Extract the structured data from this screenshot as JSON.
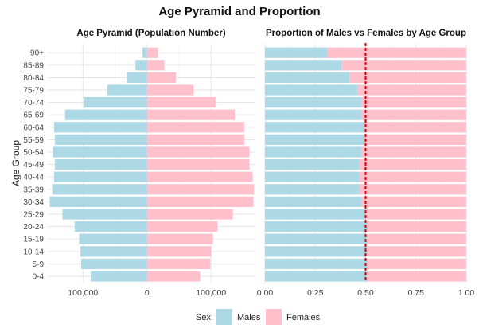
{
  "figure": {
    "title": "Age Pyramid and Proportion"
  },
  "legend": {
    "title": "Sex",
    "items": [
      {
        "label": "Males",
        "color": "#add8e6"
      },
      {
        "label": "Females",
        "color": "#ffc0cb"
      }
    ]
  },
  "chart_data": [
    {
      "type": "bar",
      "orientation": "horizontal",
      "title": "Age Pyramid (Population Number)",
      "ylabel": "Age Group",
      "categories": [
        "0-4",
        "5-9",
        "10-14",
        "15-19",
        "20-24",
        "25-29",
        "30-34",
        "35-39",
        "40-44",
        "45-49",
        "50-54",
        "55-59",
        "60-64",
        "65-69",
        "70-74",
        "75-79",
        "80-84",
        "85-89",
        "90+"
      ],
      "series": [
        {
          "name": "Males",
          "color": "#add8e6",
          "values": [
            -88000,
            -103000,
            -104000,
            -106000,
            -113000,
            -132000,
            -152000,
            -148000,
            -145000,
            -144000,
            -147000,
            -144000,
            -145000,
            -128000,
            -98000,
            -62000,
            -32000,
            -18000,
            -7000
          ]
        },
        {
          "name": "Females",
          "color": "#ffc0cb",
          "values": [
            83000,
            99000,
            100000,
            103000,
            110000,
            134000,
            166000,
            167000,
            165000,
            160000,
            160000,
            152000,
            152000,
            137000,
            107000,
            73000,
            45000,
            27000,
            17000
          ]
        }
      ],
      "xlim": [
        -155000,
        168000
      ],
      "xticks": [
        -100000,
        0,
        100000
      ],
      "xtick_labels": [
        "100,000",
        "0",
        "100,000"
      ],
      "grid": true
    },
    {
      "type": "bar",
      "orientation": "horizontal",
      "stacked": true,
      "title": "Proportion of Males vs Females by Age Group",
      "categories": [
        "0-4",
        "5-9",
        "10-14",
        "15-19",
        "20-24",
        "25-29",
        "30-34",
        "35-39",
        "40-44",
        "45-49",
        "50-54",
        "55-59",
        "60-64",
        "65-69",
        "70-74",
        "75-79",
        "80-84",
        "85-89",
        "90+"
      ],
      "series": [
        {
          "name": "Males",
          "color": "#add8e6",
          "values": [
            0.51,
            0.51,
            0.51,
            0.51,
            0.51,
            0.5,
            0.48,
            0.47,
            0.47,
            0.47,
            0.48,
            0.49,
            0.49,
            0.48,
            0.48,
            0.46,
            0.42,
            0.38,
            0.31
          ]
        },
        {
          "name": "Females",
          "color": "#ffc0cb",
          "values": [
            0.49,
            0.49,
            0.49,
            0.49,
            0.49,
            0.5,
            0.52,
            0.53,
            0.53,
            0.53,
            0.52,
            0.51,
            0.51,
            0.52,
            0.52,
            0.54,
            0.58,
            0.62,
            0.69
          ]
        }
      ],
      "reference_line": {
        "x": 0.5,
        "style": "dotted",
        "color": "#e00000"
      },
      "xlim": [
        0,
        1
      ],
      "xticks": [
        0,
        0.25,
        0.5,
        0.75,
        1
      ],
      "xtick_labels": [
        "0.00",
        "0.25",
        "0.50",
        "0.75",
        "1.00"
      ],
      "grid": true
    }
  ]
}
